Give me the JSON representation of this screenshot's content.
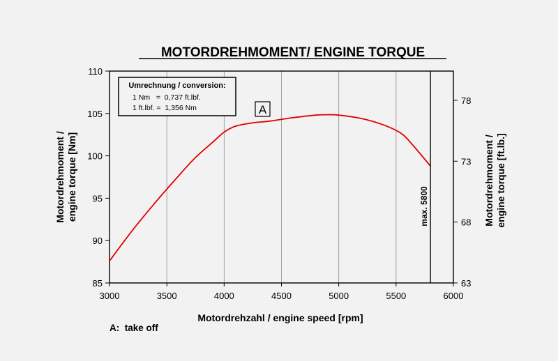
{
  "chart_data": {
    "type": "line",
    "title": "MOTORDREHMOMENT/ ENGINE TORQUE",
    "xlabel": "Motordrehzahl / engine speed [rpm]",
    "ylabel_left": [
      "Motordrehmoment /",
      "engine torque [Nm]"
    ],
    "ylabel_right": [
      "Motordrehmoment /",
      "engine torque [ft.lb.]"
    ],
    "xlim": [
      3000,
      6000
    ],
    "ylim": [
      85,
      110
    ],
    "ylim_right": [
      63,
      80.4
    ],
    "x_ticks": [
      "3000",
      "3500",
      "4000",
      "4500",
      "5000",
      "5500",
      "6000"
    ],
    "y_ticks": [
      "85",
      "90",
      "95",
      "100",
      "105",
      "110"
    ],
    "y_ticks_right": [
      "63",
      "68",
      "73",
      "78"
    ],
    "grid": "vertical",
    "series": [
      {
        "color": "#e00000",
        "x": [
          3000,
          3200,
          3400,
          3600,
          3750,
          3900,
          4000,
          4100,
          4250,
          4400,
          4600,
          4800,
          4900,
          5000,
          5200,
          5400,
          5550,
          5650,
          5800
        ],
        "y": [
          87.6,
          91.2,
          94.5,
          97.6,
          99.8,
          101.6,
          102.8,
          103.5,
          103.9,
          104.1,
          104.5,
          104.8,
          104.85,
          104.8,
          104.4,
          103.6,
          102.6,
          101.2,
          98.8
        ]
      }
    ],
    "marker_line": {
      "x": 5800,
      "label": "max. 5800"
    },
    "annotation": {
      "label": "A",
      "x": 4350,
      "y": 105.5
    },
    "conversion_box": {
      "title": "Umrechnung / conversion:",
      "lines": [
        "1 Nm   =  0,737 ft.lbf.",
        "1 ft.lbf. =  1,356 Nm"
      ]
    },
    "footnote": "A:  take off"
  }
}
